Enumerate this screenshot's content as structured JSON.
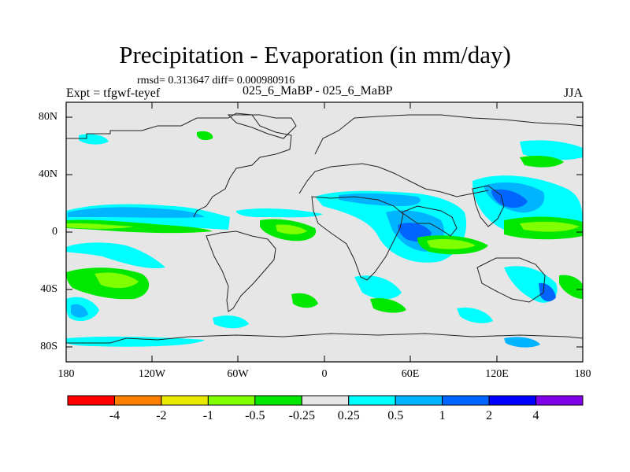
{
  "title": "Precipitation - Evaporation (in mm/day)",
  "stats_line": "rmsd= 0.313647 diff= 0.000980916",
  "expt_line": "Expt = tfgwf-teyef",
  "comparison": "025_6_MaBP - 025_6_MaBP",
  "season": "JJA",
  "lat_labels": [
    "80N",
    "40N",
    "0",
    "40S",
    "80S"
  ],
  "lon_labels": [
    "180",
    "120W",
    "60W",
    "0",
    "60E",
    "120E",
    "180"
  ],
  "colorbar": {
    "labels": [
      "-4",
      "-2",
      "-1",
      "-0.5",
      "-0.25",
      "0.25",
      "0.5",
      "1",
      "2",
      "4"
    ],
    "colors": [
      "#ff0000",
      "#ff8000",
      "#e8e800",
      "#80ff00",
      "#00e800",
      "#e6e6e6",
      "#00ffff",
      "#00b4ff",
      "#0064ff",
      "#0000ff",
      "#8000e8"
    ]
  }
}
